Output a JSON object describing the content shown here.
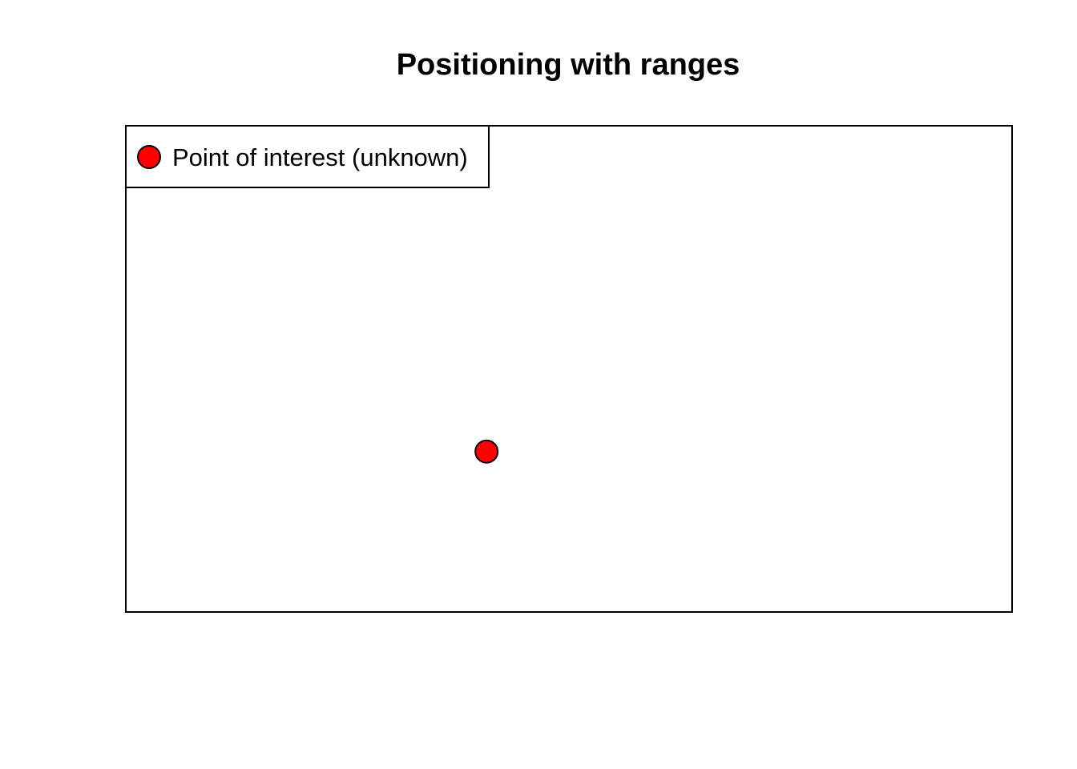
{
  "chart_data": {
    "type": "scatter",
    "title": "Positioning with ranges",
    "xlabel": "",
    "ylabel": "",
    "axes_shown": false,
    "grid": false,
    "xlim": [
      0,
      1
    ],
    "ylim": [
      0,
      1
    ],
    "legend": {
      "placement": "top-left",
      "entries": [
        {
          "label": "Point of interest (unknown)",
          "color": "#ff0000"
        }
      ]
    },
    "series": [
      {
        "name": "Point of interest (unknown)",
        "color": "#ff0000",
        "points": [
          {
            "x": 0.407,
            "y": 0.33
          }
        ]
      }
    ]
  }
}
